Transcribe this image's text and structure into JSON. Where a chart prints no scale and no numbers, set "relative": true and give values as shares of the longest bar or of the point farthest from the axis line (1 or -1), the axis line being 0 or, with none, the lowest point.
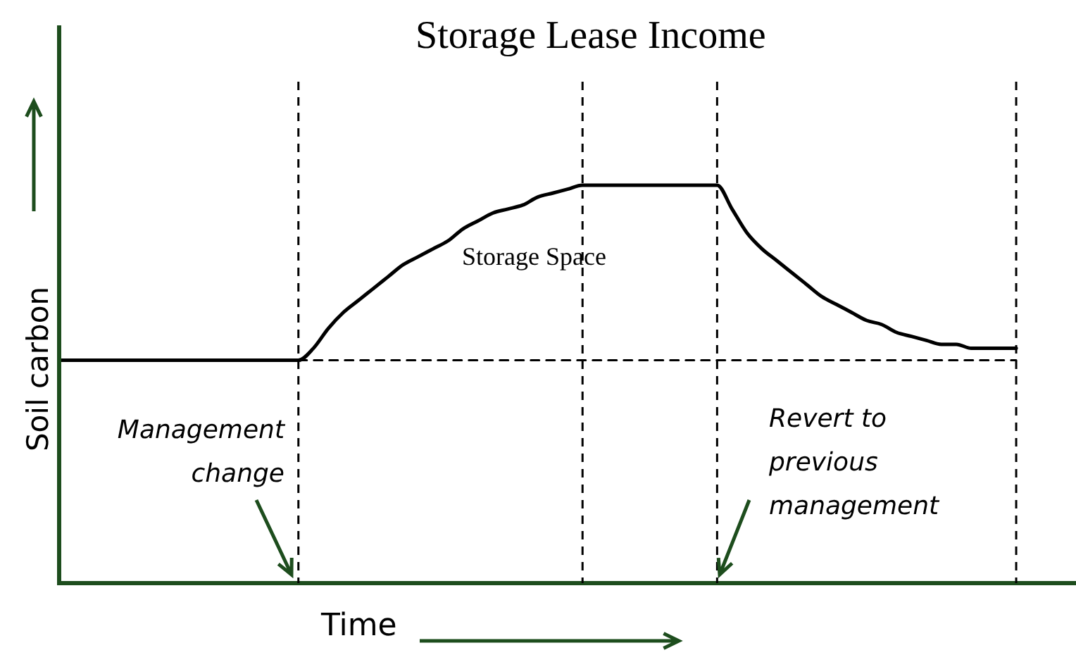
{
  "chart_data": {
    "type": "line",
    "title": "Storage Lease Income",
    "xlabel": "Time",
    "ylabel": "Soil carbon",
    "relative": true,
    "categories": [
      null,
      null,
      null,
      null,
      null,
      null,
      null,
      null,
      null,
      null,
      null,
      null,
      null,
      null,
      null,
      null,
      null,
      null,
      null,
      null,
      null,
      null,
      null,
      null,
      null,
      null,
      null,
      null,
      null,
      null,
      null,
      null,
      null,
      null,
      null,
      null,
      null,
      null,
      null,
      null,
      null,
      null,
      null,
      null,
      null,
      null,
      null,
      null,
      null,
      null,
      null,
      null,
      null,
      null,
      null,
      null,
      null,
      null,
      null,
      null,
      null,
      null,
      null,
      null,
      null,
      null,
      null,
      null,
      null
    ],
    "series": [
      {
        "color": "#000000",
        "line_style": "solid",
        "values": [
          0.56,
          0.56,
          0.56,
          0.56,
          0.56,
          0.56,
          0.56,
          0.56,
          0.56,
          0.56,
          0.56,
          0.56,
          0.56,
          0.56,
          0.56,
          0.56,
          0.56,
          0.59,
          0.64,
          0.68,
          0.71,
          0.74,
          0.77,
          0.8,
          0.82,
          0.84,
          0.86,
          0.89,
          0.91,
          0.93,
          0.94,
          0.95,
          0.97,
          0.98,
          0.99,
          1,
          1,
          1,
          1,
          1,
          1,
          1,
          1,
          1,
          1,
          0.94,
          0.88,
          0.84,
          0.81,
          0.78,
          0.75,
          0.72,
          0.7,
          0.68,
          0.66,
          0.65,
          0.63,
          0.62,
          0.61,
          0.6,
          0.6,
          0.59,
          0.59,
          0.59,
          0.59,
          null,
          null,
          null,
          null
        ]
      },
      {
        "color": "#000000",
        "line_style": "dashed",
        "values": [
          null,
          null,
          null,
          null,
          null,
          null,
          null,
          null,
          null,
          null,
          null,
          null,
          null,
          null,
          null,
          null,
          0.56,
          0.56,
          0.56,
          0.56,
          0.56,
          0.56,
          0.56,
          0.56,
          0.56,
          0.56,
          0.56,
          0.56,
          0.56,
          0.56,
          0.56,
          0.56,
          0.56,
          0.56,
          0.56,
          0.56,
          0.56,
          0.56,
          0.56,
          0.56,
          0.56,
          0.56,
          0.56,
          0.56,
          0.56,
          0.56,
          0.56,
          0.56,
          0.56,
          0.56,
          0.56,
          0.56,
          0.56,
          0.56,
          0.56,
          0.56,
          0.56,
          0.56,
          0.56,
          0.56,
          0.56,
          0.56,
          0.56,
          0.56,
          0.56,
          null,
          null,
          null,
          null
        ]
      }
    ],
    "annotations": [
      "Storage Space",
      "Management change",
      "Revert to previous management"
    ],
    "grid": false,
    "legend": false,
    "marker": "none"
  }
}
